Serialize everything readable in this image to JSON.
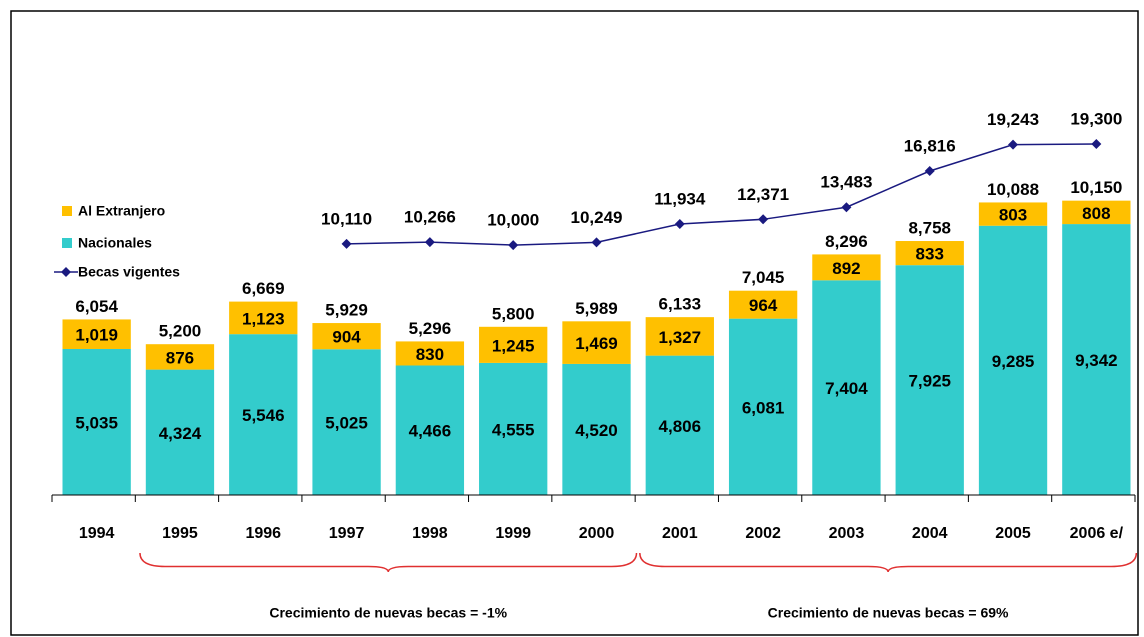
{
  "chart_data": {
    "type": "bar",
    "categories": [
      "1994",
      "1995",
      "1996",
      "1997",
      "1998",
      "1999",
      "2000",
      "2001",
      "2002",
      "2003",
      "2004",
      "2005",
      "2006 e/"
    ],
    "stacked": true,
    "ylim": [
      0,
      16000
    ],
    "y2lim": [
      -13000,
      29700
    ],
    "series": [
      {
        "name": "Nacionales",
        "type": "bar",
        "color": "#33cccc",
        "values": [
          5035,
          4324,
          5546,
          5025,
          4466,
          4555,
          4520,
          4806,
          6081,
          7404,
          7925,
          9285,
          9342
        ],
        "value_labels": [
          "5,035",
          "4,324",
          "5,546",
          "5,025",
          "4,466",
          "4,555",
          "4,520",
          "4,806",
          "6,081",
          "7,404",
          "7,925",
          "9,285",
          "9,342"
        ]
      },
      {
        "name": "Al Extranjero",
        "type": "bar",
        "color": "#ffc000",
        "values": [
          1019,
          876,
          1123,
          904,
          830,
          1245,
          1469,
          1327,
          964,
          892,
          833,
          803,
          808
        ],
        "value_labels": [
          "1,019",
          "876",
          "1,123",
          "904",
          "830",
          "1,245",
          "1,469",
          "1,327",
          "964",
          "892",
          "833",
          "803",
          "808"
        ]
      },
      {
        "name": "Becas vigentes",
        "type": "line",
        "axis": "y2",
        "color": "#1a1a80",
        "values": [
          null,
          null,
          null,
          10110,
          10266,
          10000,
          10249,
          11934,
          12371,
          13483,
          16816,
          19243,
          19300
        ],
        "value_labels": [
          null,
          null,
          null,
          "10,110",
          "10,266",
          "10,000",
          "10,249",
          "11,934",
          "12,371",
          "13,483",
          "16,816",
          "19,243",
          "19,300"
        ]
      }
    ],
    "total_labels": [
      "6,054",
      "5,200",
      "6,669",
      "5,929",
      "5,296",
      "5,800",
      "5,989",
      "6,133",
      "7,045",
      "8,296",
      "8,758",
      "10,088",
      "10,150"
    ],
    "annotations": [
      "Crecimiento de nuevas becas = -1%",
      "Crecimiento de nuevas becas = 69%"
    ]
  }
}
